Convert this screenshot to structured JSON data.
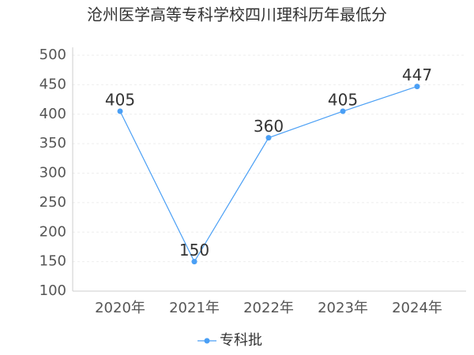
{
  "chart_data": {
    "type": "line",
    "title": "沧州医学高等专科学校四川理科历年最低分",
    "categories": [
      "2020年",
      "2021年",
      "2022年",
      "2023年",
      "2024年"
    ],
    "series": [
      {
        "name": "专科批",
        "color": "#4a9ff5",
        "values": [
          405,
          150,
          360,
          405,
          447
        ]
      }
    ],
    "ylim": [
      100,
      500
    ],
    "yticks": [
      100,
      150,
      200,
      250,
      300,
      350,
      400,
      450,
      500
    ],
    "grid": true
  }
}
